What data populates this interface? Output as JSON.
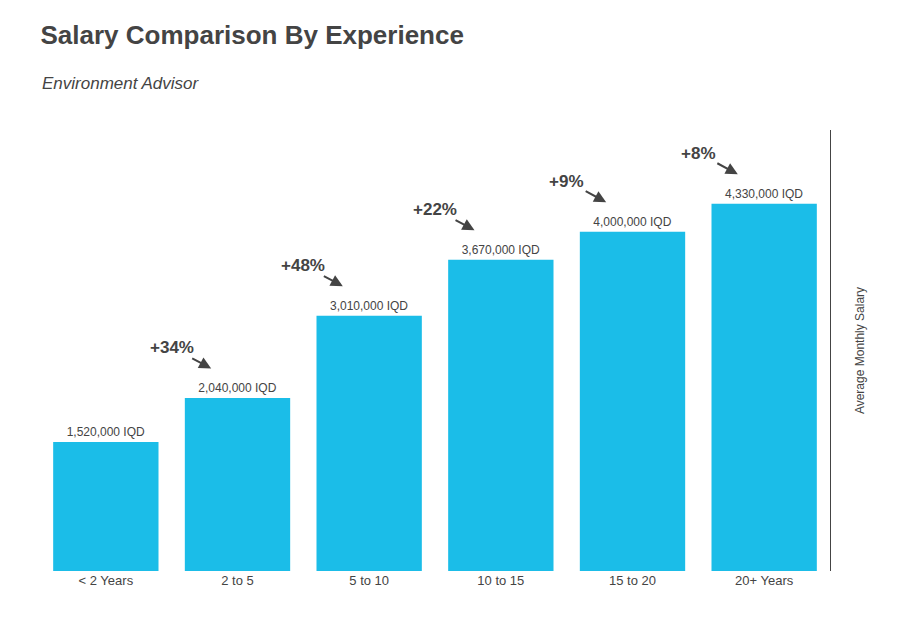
{
  "chart_data": {
    "type": "bar",
    "title": "Salary Comparison By Experience",
    "subtitle": "Environment Advisor",
    "ylabel": "Average Monthly Salary",
    "categories": [
      "< 2 Years",
      "2 to 5",
      "5 to 10",
      "10 to 15",
      "15 to 20",
      "20+ Years"
    ],
    "values": [
      1520000,
      2040000,
      3010000,
      3670000,
      4000000,
      4330000
    ],
    "value_labels": [
      "1,520,000 IQD",
      "2,040,000 IQD",
      "3,010,000 IQD",
      "3,670,000 IQD",
      "4,000,000 IQD",
      "4,330,000 IQD"
    ],
    "data_labels": true,
    "annotations": [
      "+34%",
      "+48%",
      "+22%",
      "+9%",
      "+8%"
    ],
    "color": "#1bbde8",
    "ylim": [
      0,
      5200000
    ],
    "grid": false,
    "tick_labels": "x"
  }
}
